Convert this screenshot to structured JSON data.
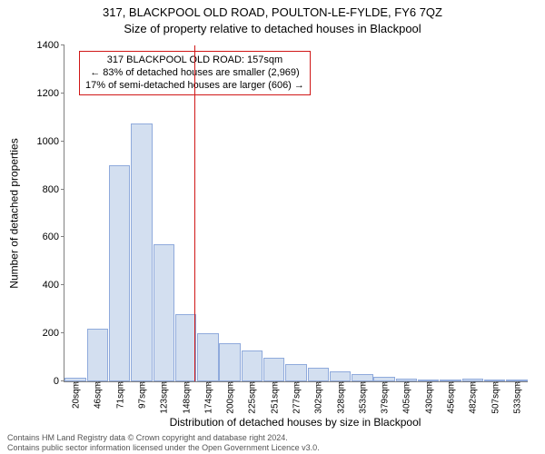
{
  "title_main": "317, BLACKPOOL OLD ROAD, POULTON-LE-FYLDE, FY6 7QZ",
  "title_sub": "Size of property relative to detached houses in Blackpool",
  "y_axis_label": "Number of detached properties",
  "x_axis_label": "Distribution of detached houses by size in Blackpool",
  "chart": {
    "type": "histogram",
    "bar_fill": "#d3dff0",
    "bar_stroke": "#8faadc",
    "background_color": "#ffffff",
    "axis_color": "#808080",
    "ylim": [
      0,
      1400
    ],
    "yticks": [
      0,
      200,
      400,
      600,
      800,
      1000,
      1200,
      1400
    ],
    "xtick_labels": [
      "20sqm",
      "46sqm",
      "71sqm",
      "97sqm",
      "123sqm",
      "148sqm",
      "174sqm",
      "200sqm",
      "225sqm",
      "251sqm",
      "277sqm",
      "302sqm",
      "328sqm",
      "353sqm",
      "379sqm",
      "405sqm",
      "430sqm",
      "456sqm",
      "482sqm",
      "507sqm",
      "533sqm"
    ],
    "values": [
      15,
      220,
      900,
      1075,
      570,
      280,
      200,
      160,
      130,
      100,
      72,
      55,
      40,
      30,
      18,
      10,
      7,
      5,
      12,
      4,
      3
    ],
    "vline_index": 5.4,
    "vline_color": "#d01717"
  },
  "annotation": {
    "border_color": "#d01717",
    "line1": "317 BLACKPOOL OLD ROAD: 157sqm",
    "line2": "← 83% of detached houses are smaller (2,969)",
    "line3": "17% of semi-detached houses are larger (606) →"
  },
  "footer_line1": "Contains HM Land Registry data © Crown copyright and database right 2024.",
  "footer_line2": "Contains public sector information licensed under the Open Government Licence v3.0."
}
